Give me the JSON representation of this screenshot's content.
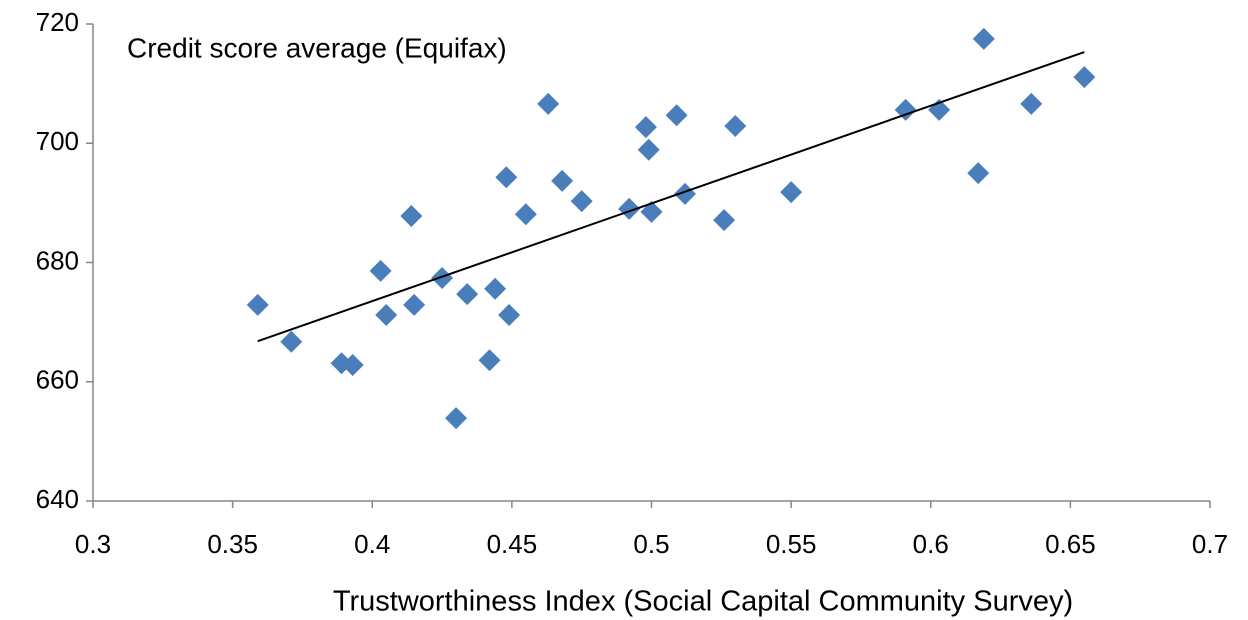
{
  "chart_data": {
    "type": "scatter",
    "annotation": "Credit score average (Equifax)",
    "x_label": "Trustworthiness Index (Social Capital Community Survey)",
    "color": "#4a7ebb",
    "x": [
      0.359,
      0.371,
      0.389,
      0.393,
      0.403,
      0.405,
      0.414,
      0.415,
      0.425,
      0.43,
      0.434,
      0.444,
      0.442,
      0.449,
      0.448,
      0.455,
      0.463,
      0.468,
      0.475,
      0.492,
      0.498,
      0.499,
      0.5,
      0.509,
      0.512,
      0.526,
      0.53,
      0.55,
      0.591,
      0.603,
      0.617,
      0.619,
      0.636,
      0.655
    ],
    "y": [
      672.9,
      666.7,
      663.1,
      662.8,
      678.6,
      671.2,
      687.8,
      672.9,
      677.4,
      653.9,
      674.7,
      675.6,
      663.6,
      671.2,
      694.3,
      688.1,
      706.6,
      693.7,
      690.3,
      689.0,
      702.7,
      698.9,
      688.5,
      704.7,
      691.5,
      687.1,
      702.9,
      691.8,
      705.6,
      705.6,
      695.0,
      717.5,
      706.6,
      711.1
    ],
    "trendline": {
      "x": [
        0.359,
        0.655
      ],
      "y": [
        666.8,
        715.3
      ]
    },
    "xlim": [
      0.3,
      0.7
    ],
    "xticks": [
      0.3,
      0.35,
      0.4,
      0.45,
      0.5,
      0.55,
      0.6,
      0.65,
      0.7
    ],
    "ylim": [
      640,
      720
    ],
    "yticks": [
      640,
      660,
      680,
      700,
      720
    ]
  }
}
